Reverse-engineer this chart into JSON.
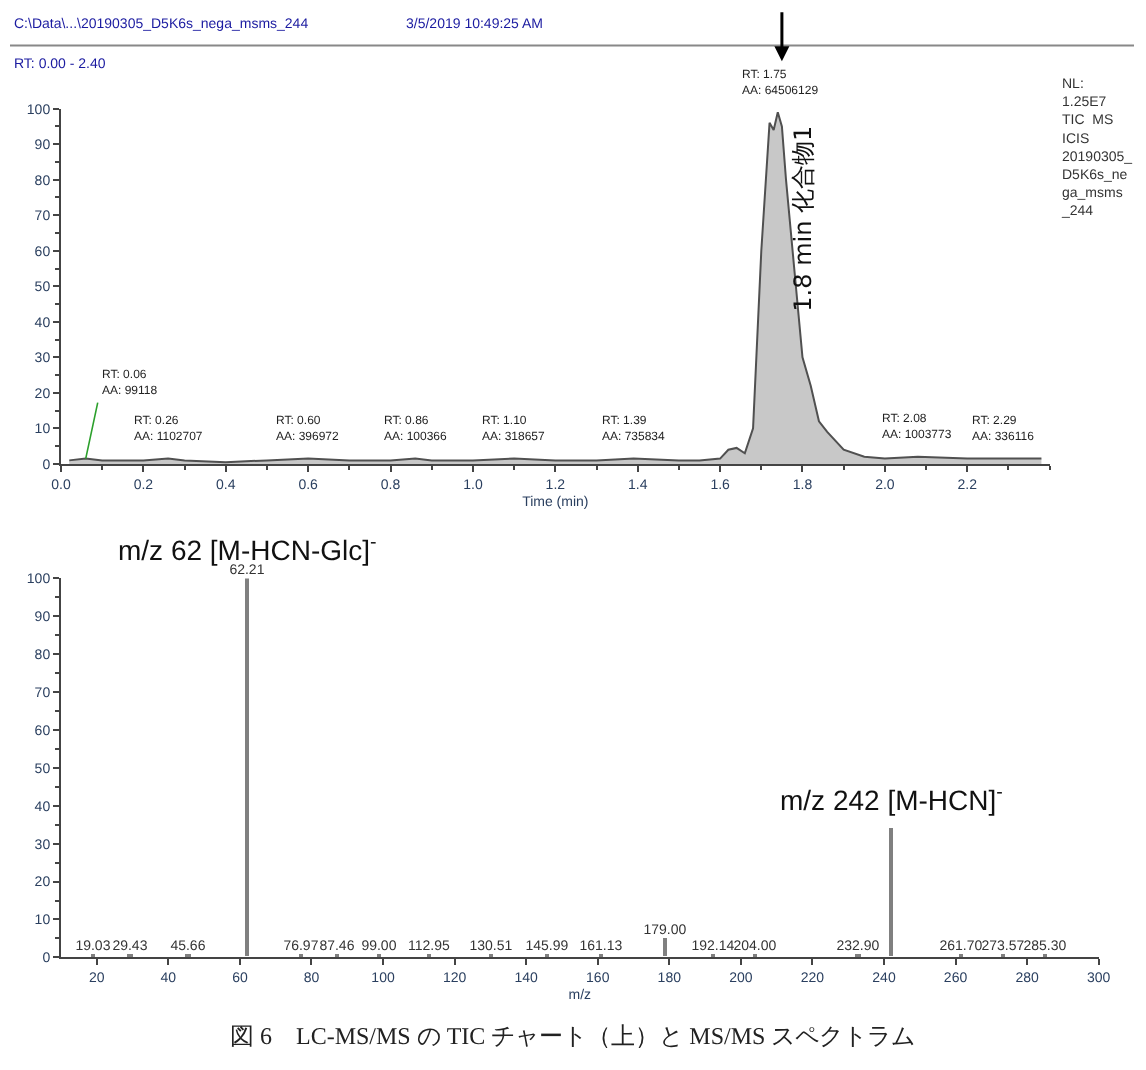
{
  "chart_data": [
    {
      "type": "area",
      "xlabel": "Time (min)",
      "xlim": [
        0,
        2.4
      ],
      "ylim": [
        0,
        100
      ],
      "xticks": [
        {
          "value": 0,
          "label": "0.0"
        },
        0.2,
        0.4,
        0.6,
        0.8,
        {
          "value": 1,
          "label": "1.0"
        },
        1.2,
        1.4,
        1.6,
        1.8,
        {
          "value": 2,
          "label": "2.0"
        },
        2.2
      ],
      "yticks": [
        0,
        10,
        20,
        30,
        40,
        50,
        60,
        70,
        80,
        90,
        100
      ],
      "x": [
        0.02,
        0.06,
        0.1,
        0.2,
        0.26,
        0.3,
        0.4,
        0.5,
        0.6,
        0.7,
        0.8,
        0.86,
        0.9,
        1.0,
        1.1,
        1.2,
        1.3,
        1.39,
        1.5,
        1.55,
        1.6,
        1.62,
        1.64,
        1.66,
        1.68,
        1.7,
        1.72,
        1.73,
        1.74,
        1.75,
        1.76,
        1.78,
        1.8,
        1.82,
        1.84,
        1.86,
        1.9,
        1.95,
        2.0,
        2.08,
        2.2,
        2.29,
        2.38
      ],
      "series": [
        {
          "color": "#c8c8c8",
          "values": [
            1,
            1.5,
            1,
            1,
            1.5,
            1,
            0.5,
            1,
            1.5,
            1,
            1,
            1.5,
            1,
            1,
            1.5,
            1,
            1,
            1.5,
            1,
            1,
            1.5,
            4,
            4.5,
            3,
            10,
            60,
            96,
            94,
            99,
            95,
            80,
            55,
            30,
            22,
            12,
            9,
            4,
            2,
            1.5,
            2,
            1.5,
            1.5,
            1.5
          ]
        }
      ],
      "annotations": [
        "C:\\Data\\...\\20190305_D5K6s_nega_msms_244",
        "3/5/2019 10:49:25 AM",
        "RT: 0.00 - 2.40",
        "NL:\n1.25E7\nTIC  MS\nICIS\n20190305_\nD5K6s_ne\nga_msms\n_244",
        "1.8 min 化合物1",
        {
          "text": "RT: 1.75\nAA: 64506129",
          "x": 1.75,
          "y": 99
        },
        {
          "text": "RT: 0.06\nAA: 99118",
          "x": 0.06,
          "y": 1.5
        },
        {
          "text": "RT: 0.26\nAA: 1102707",
          "x": 0.26,
          "y": 1.5
        },
        {
          "text": "RT: 0.60\nAA: 396972",
          "x": 0.6,
          "y": 1.5
        },
        {
          "text": "RT: 0.86\nAA: 100366",
          "x": 0.86,
          "y": 1.5
        },
        {
          "text": "RT: 1.10\nAA: 318657",
          "x": 1.1,
          "y": 1.5
        },
        {
          "text": "RT: 1.39\nAA: 735834",
          "x": 1.39,
          "y": 1.5
        },
        {
          "text": "RT: 2.08\nAA: 1003773",
          "x": 2.08,
          "y": 2
        },
        {
          "text": "RT: 2.29\nAA: 336116",
          "x": 2.29,
          "y": 1.5
        }
      ]
    },
    {
      "type": "bar",
      "xlabel": "m/z",
      "xlim": [
        10,
        300
      ],
      "ylim": [
        0,
        100
      ],
      "xticks": [
        20,
        40,
        60,
        80,
        100,
        120,
        140,
        160,
        180,
        200,
        220,
        240,
        260,
        280,
        300
      ],
      "yticks": [
        0,
        10,
        20,
        30,
        40,
        50,
        60,
        70,
        80,
        90,
        100
      ],
      "x": [
        19.03,
        29.43,
        45.66,
        62.21,
        76.97,
        87.46,
        99.0,
        112.95,
        130.51,
        145.99,
        161.13,
        179.0,
        192.14,
        204.0,
        232.9,
        242,
        261.7,
        273.57,
        285.3
      ],
      "series": [
        {
          "color": "#808080",
          "values": [
            0.5,
            0.5,
            0.5,
            100,
            0.5,
            0.5,
            0.5,
            0.5,
            0.5,
            0.5,
            0.5,
            5,
            0.5,
            0.5,
            0.5,
            34,
            0.5,
            0.5,
            0.5
          ]
        }
      ],
      "value_labels": [
        "19.03",
        "29.43",
        "45.66",
        "62.21",
        "76.97",
        "87.46",
        "99.00",
        "112.95",
        "130.51",
        "145.99",
        "161.13",
        "179.00",
        "192.14",
        "204.00",
        "232.90",
        null,
        "261.70",
        "273.57",
        "285.30"
      ],
      "annotations": [
        {
          "text": "m/z 62 [M-HCN-Glc]$^{-}$",
          "x": 62,
          "y": 100
        },
        {
          "text": "m/z 242 [M-HCN]$^{-}$",
          "x": 242,
          "y": 34
        },
        "図 6　LC-MS/MS の TIC チャート（上）と MS/MS スペクトラム"
      ]
    }
  ]
}
